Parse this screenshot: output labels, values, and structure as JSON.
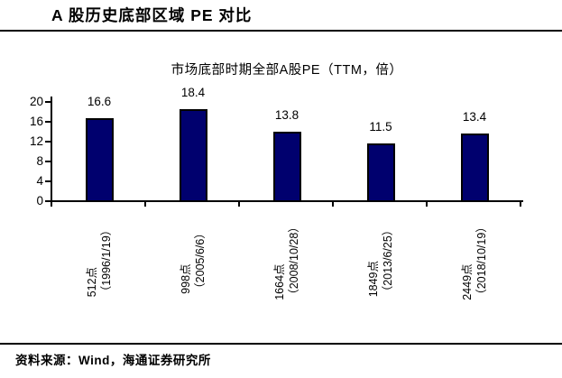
{
  "header": {
    "title": "A 股历史底部区域 PE 对比"
  },
  "footer": {
    "source": "资料来源：Wind，海通证券研究所"
  },
  "chart_data": {
    "type": "bar",
    "title": "市场底部时期全部A股PE（TTM，倍）",
    "categories": [
      "512点",
      "998点",
      "1664点",
      "1849点",
      "2449点"
    ],
    "category_dates": [
      "（1996/1/19）",
      "（2005/6/6）",
      "（2008/10/28）",
      "（2013/6/25）",
      "（2018/10/19）"
    ],
    "values": [
      16.6,
      18.4,
      13.8,
      11.5,
      13.4
    ],
    "value_labels": [
      "16.6",
      "18.4",
      "13.8",
      "11.5",
      "13.4"
    ],
    "ylim": [
      0,
      20
    ],
    "yticks": [
      0,
      4,
      8,
      12,
      16,
      20
    ],
    "xlabel": "",
    "ylabel": "",
    "grid": false,
    "legend": false,
    "bar_color": "#00006E",
    "bar_border_color": "#000000",
    "axis_color": "#000000",
    "text_color": "#000000",
    "background_color": "#FFFFFF"
  }
}
